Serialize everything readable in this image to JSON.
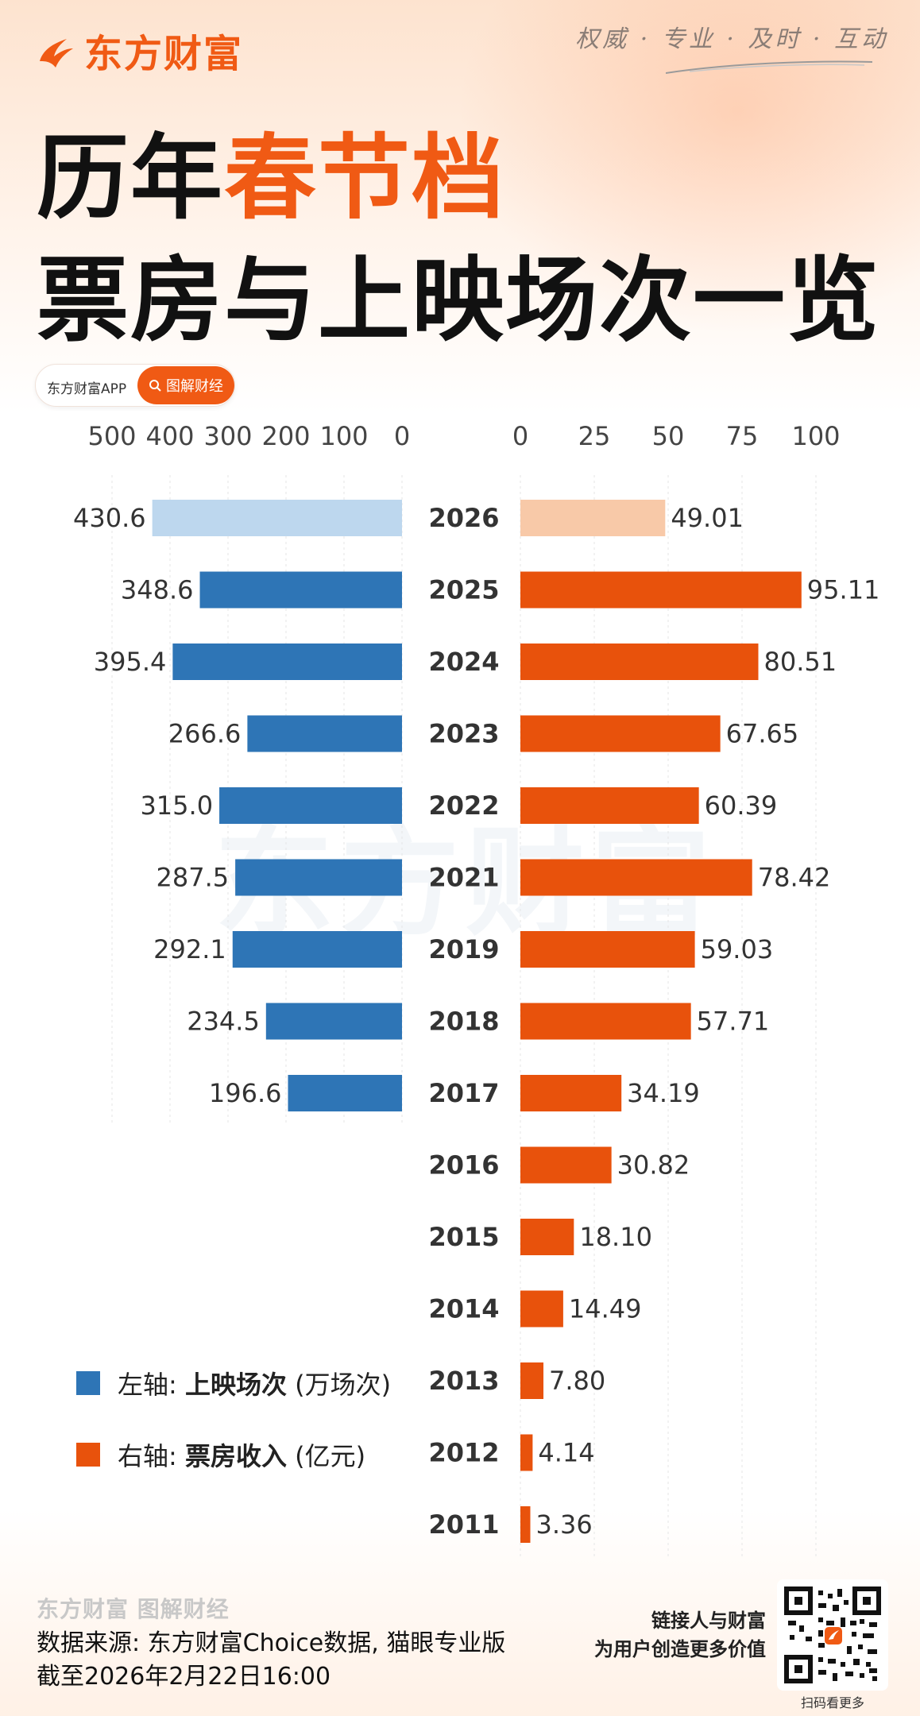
{
  "brand": {
    "logo_text": "东方财富",
    "slogan": "权威 · 专业 · 及时 · 互动",
    "color": "#f05a14"
  },
  "title": {
    "line1_prefix": "历年",
    "line1_accent": "春节档",
    "line2": "票房与上映场次一览"
  },
  "pill": {
    "app_label": "东方财富APP",
    "button_label": "图解财经"
  },
  "watermark": "东方财富",
  "legend": {
    "left": {
      "prefix": "左轴: ",
      "bold": "上映场次",
      "unit": " (万场次)",
      "color": "#2e75b6"
    },
    "right": {
      "prefix": "右轴: ",
      "bold": "票房收入",
      "unit": " (亿元)",
      "color": "#e8520c"
    }
  },
  "footer": {
    "brand_line": "东方财富 图解财经",
    "source": "数据来源: 东方财富Choice数据, 猫眼专业版",
    "asof": "截至2026年2月22日16:00",
    "tagline_1": "链接人与财富",
    "tagline_2": "为用户创造更多价值",
    "qr_caption": "扫码看更多"
  },
  "chart_data": {
    "type": "bar",
    "categories": [
      "2026",
      "2025",
      "2024",
      "2023",
      "2022",
      "2021",
      "2019",
      "2018",
      "2017",
      "2016",
      "2015",
      "2014",
      "2013",
      "2012",
      "2011"
    ],
    "series": [
      {
        "name": "上映场次",
        "unit": "万场次",
        "axis": "left",
        "color": "#2e75b6",
        "highlight_color": "#bdd7ee",
        "values": [
          430.6,
          348.6,
          395.4,
          266.6,
          315.0,
          287.5,
          292.1,
          234.5,
          196.6,
          null,
          null,
          null,
          null,
          null,
          null
        ],
        "labels": [
          "430.6",
          "348.6",
          "395.4",
          "266.6",
          "315.0",
          "287.5",
          "292.1",
          "234.5",
          "196.6",
          "",
          "",
          "",
          "",
          "",
          ""
        ]
      },
      {
        "name": "票房收入",
        "unit": "亿元",
        "axis": "right",
        "color": "#e8520c",
        "highlight_color": "#f8c9a8",
        "values": [
          49.01,
          95.11,
          80.51,
          67.65,
          60.39,
          78.42,
          59.03,
          57.71,
          34.19,
          30.82,
          18.1,
          14.49,
          7.8,
          4.14,
          3.36
        ],
        "labels": [
          "49.01",
          "95.11",
          "80.51",
          "67.65",
          "60.39",
          "78.42",
          "59.03",
          "57.71",
          "34.19",
          "30.82",
          "18.10",
          "14.49",
          "7.80",
          "4.14",
          "3.36"
        ]
      }
    ],
    "left_axis": {
      "ticks": [
        500,
        400,
        300,
        200,
        100,
        0
      ],
      "range": [
        0,
        500
      ],
      "direction": "reversed"
    },
    "right_axis": {
      "ticks": [
        0,
        25,
        50,
        75,
        100
      ],
      "range": [
        0,
        100
      ]
    },
    "highlight_category": "2026",
    "grid": true
  }
}
